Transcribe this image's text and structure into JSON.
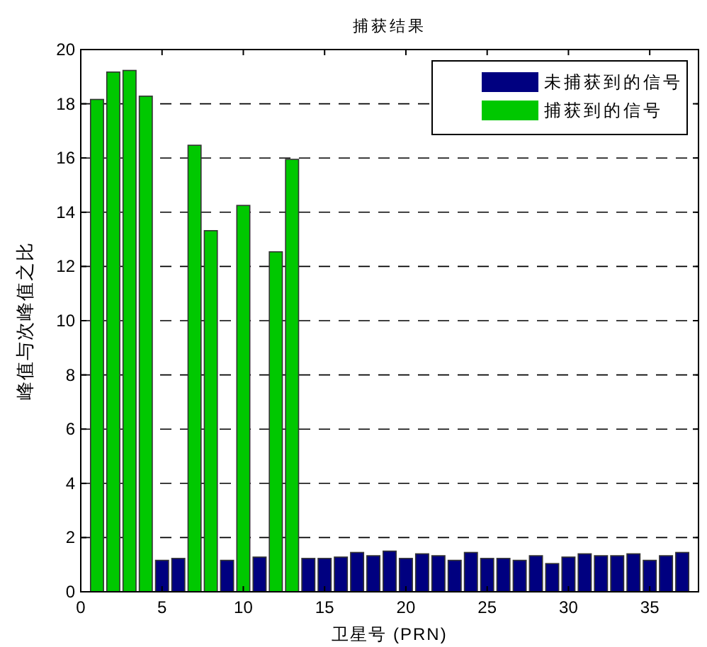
{
  "chart_data": {
    "type": "bar",
    "title": "捕获结果",
    "xlabel": "卫星号 (PRN)",
    "ylabel": "峰值与次峰值之比",
    "x": [
      1,
      2,
      3,
      4,
      5,
      6,
      7,
      8,
      9,
      10,
      11,
      12,
      13,
      14,
      15,
      16,
      17,
      18,
      19,
      20,
      21,
      22,
      23,
      24,
      25,
      26,
      27,
      28,
      29,
      30,
      31,
      32,
      33,
      34,
      35,
      36,
      37
    ],
    "series": [
      {
        "name": "未捕获到的信号",
        "color": "#000080",
        "values": [
          null,
          null,
          null,
          null,
          1.16,
          1.23,
          null,
          null,
          1.16,
          null,
          1.28,
          null,
          null,
          1.23,
          1.23,
          1.28,
          1.45,
          1.33,
          1.5,
          1.23,
          1.4,
          1.33,
          1.16,
          1.45,
          1.23,
          1.23,
          1.16,
          1.33,
          1.04,
          1.28,
          1.4,
          1.33,
          1.33,
          1.4,
          1.16,
          1.33,
          1.45
        ]
      },
      {
        "name": "捕获到的信号",
        "color": "#00c800",
        "values": [
          18.16,
          19.17,
          19.23,
          18.28,
          null,
          null,
          16.47,
          13.32,
          null,
          14.25,
          null,
          12.54,
          15.95,
          null,
          null,
          null,
          null,
          null,
          null,
          null,
          null,
          null,
          null,
          null,
          null,
          null,
          null,
          null,
          null,
          null,
          null,
          null,
          null,
          null,
          null,
          null,
          null
        ]
      }
    ],
    "xlim": [
      0,
      38
    ],
    "xticks": [
      0,
      5,
      10,
      15,
      20,
      25,
      30,
      35
    ],
    "ylim": [
      0,
      20
    ],
    "yticks": [
      0,
      2,
      4,
      6,
      8,
      10,
      12,
      14,
      16,
      18,
      20
    ],
    "grid": "y",
    "legend": "top right"
  }
}
